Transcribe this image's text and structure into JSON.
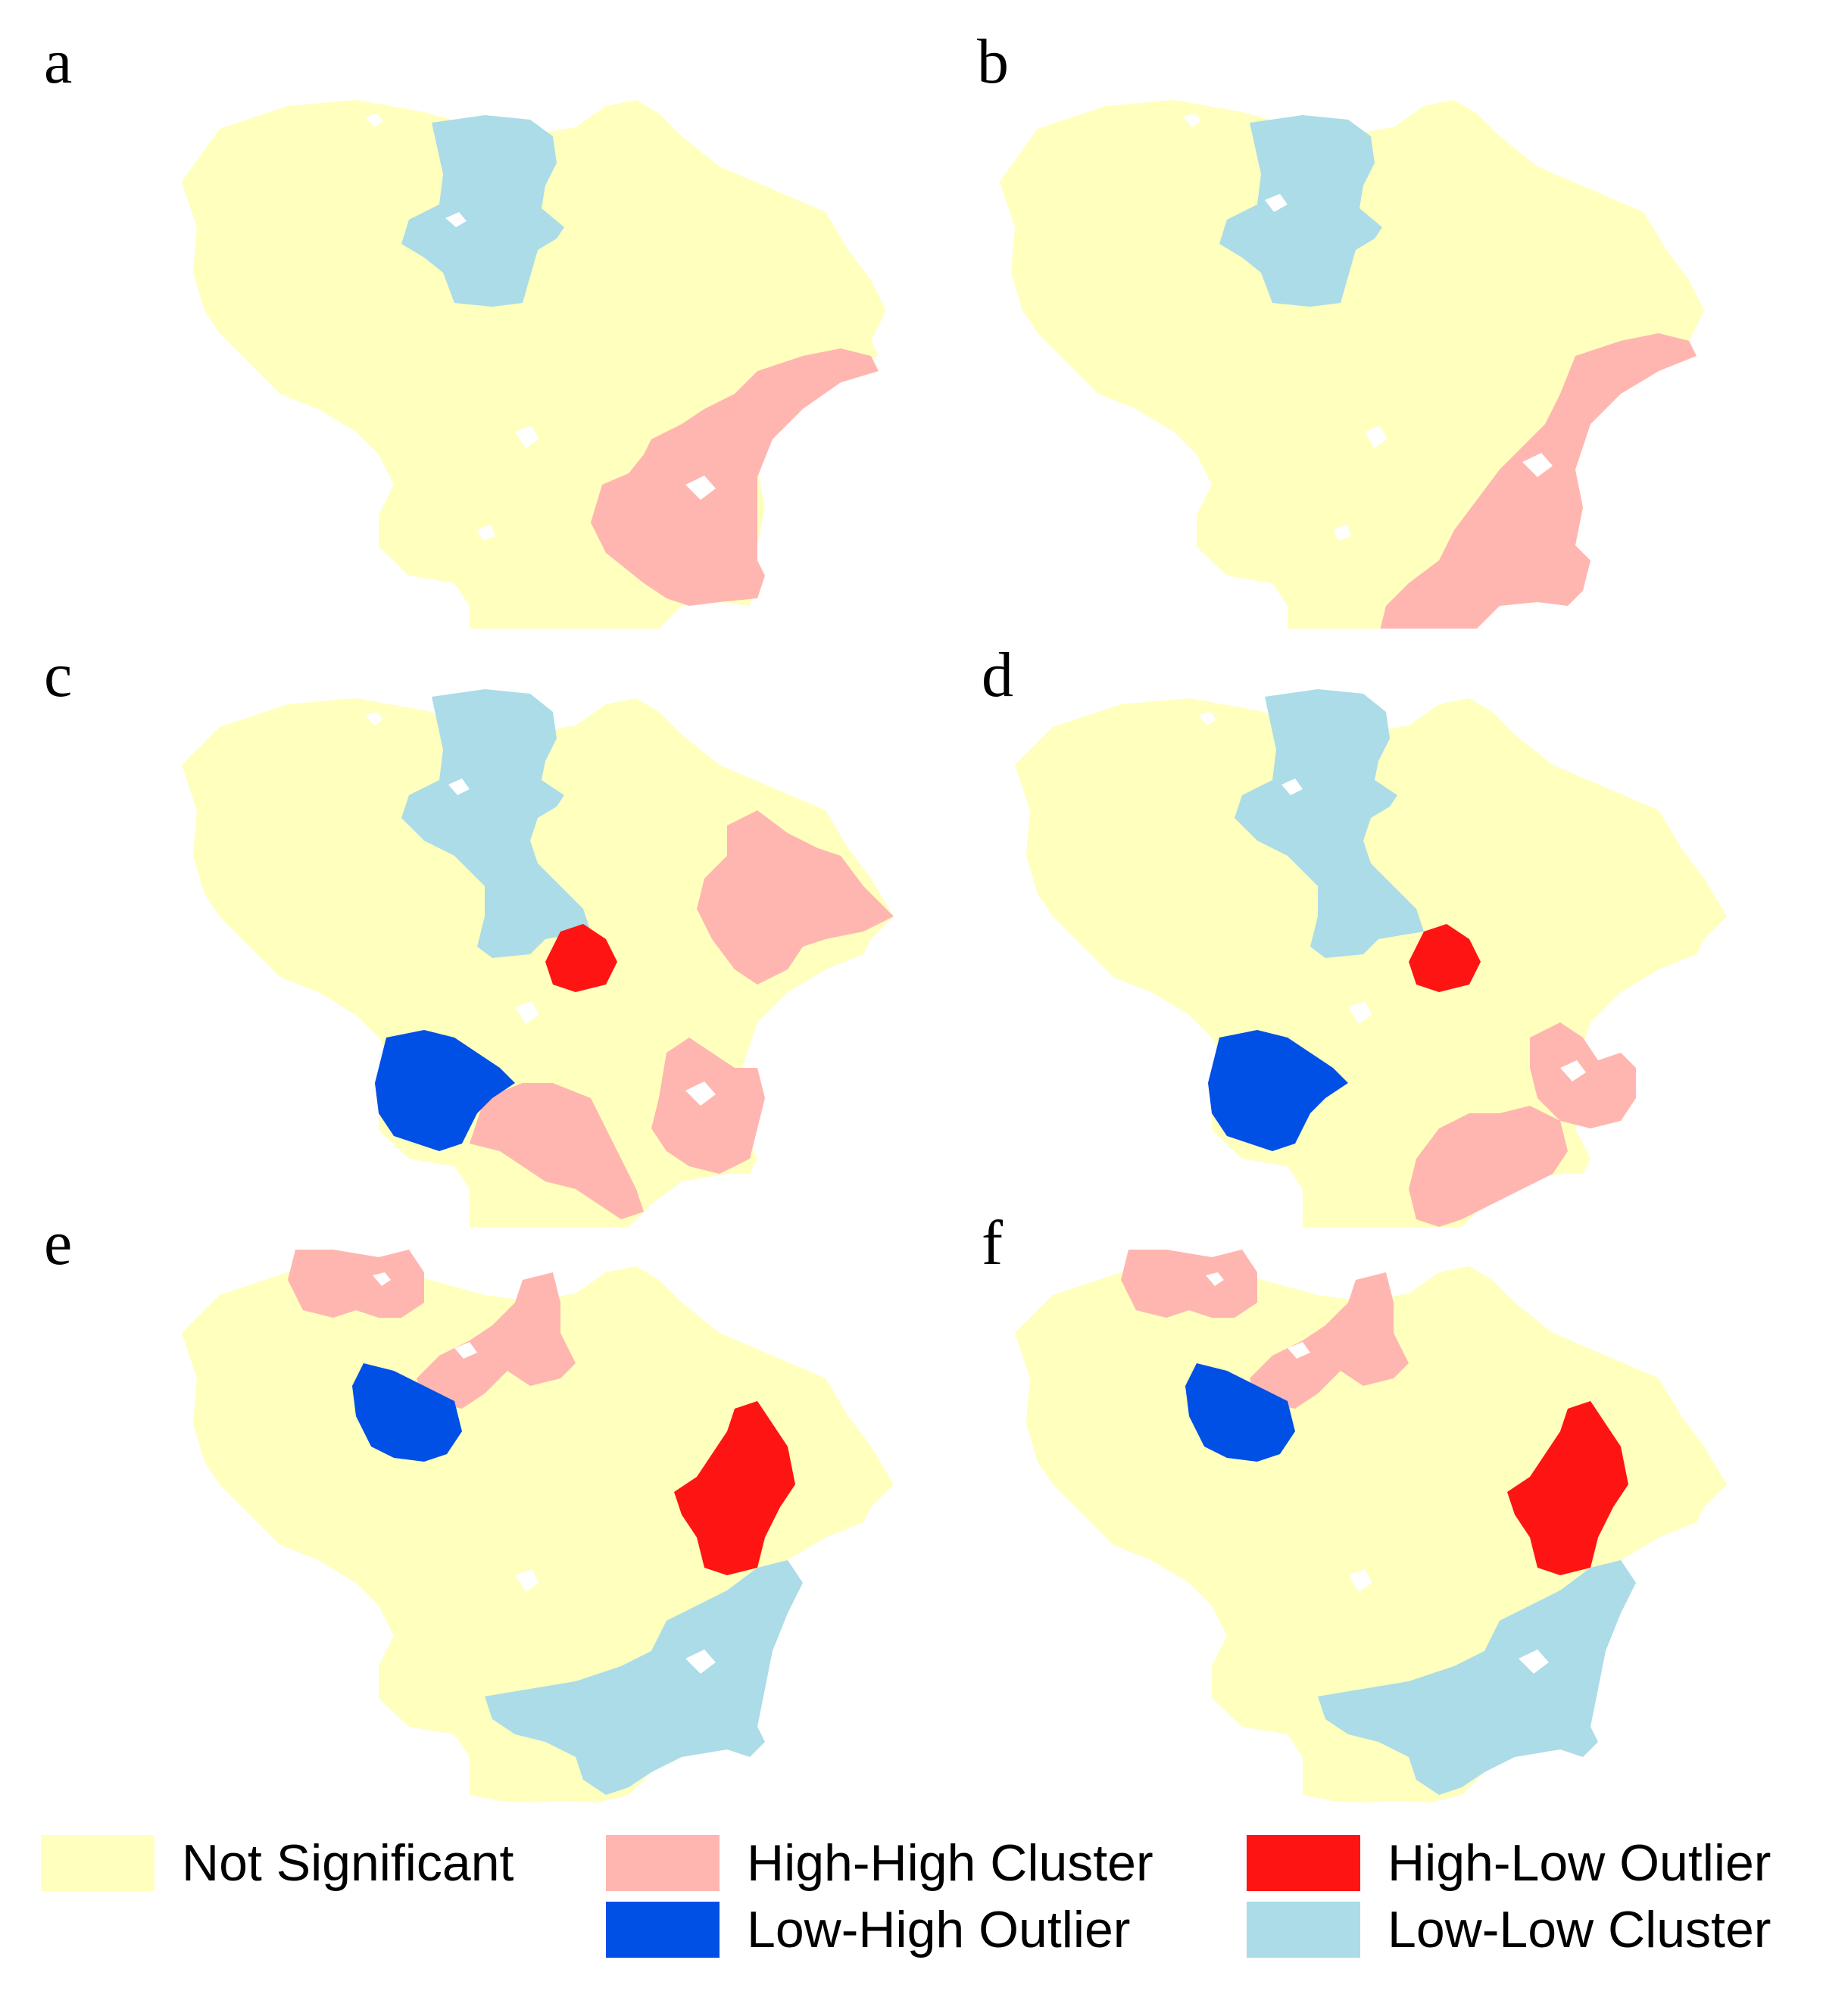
{
  "colors": {
    "not_significant": "#FFFFBE",
    "high_high": "#FFB6B0",
    "high_low": "#FF1414",
    "low_high": "#0050E6",
    "low_low": "#ABDCE8",
    "hole": "#FFFFFF"
  },
  "panels": [
    {
      "label": "a",
      "regions": [
        "low_low",
        "high_high"
      ]
    },
    {
      "label": "b",
      "regions": [
        "low_low",
        "high_high"
      ]
    },
    {
      "label": "c",
      "regions": [
        "low_low",
        "high_high",
        "high_low",
        "low_high"
      ]
    },
    {
      "label": "d",
      "regions": [
        "low_low",
        "high_high",
        "high_low",
        "low_high"
      ]
    },
    {
      "label": "e",
      "regions": [
        "high_high",
        "low_high",
        "high_low",
        "low_low"
      ]
    },
    {
      "label": "f",
      "regions": [
        "high_high",
        "low_high",
        "high_low",
        "low_low"
      ]
    }
  ],
  "legend": [
    {
      "key": "not_significant",
      "label": "Not Significant"
    },
    {
      "key": "high_high",
      "label": "High-High Cluster"
    },
    {
      "key": "high_low",
      "label": "High-Low Outlier"
    },
    {
      "key": "low_high",
      "label": "Low-High Outlier"
    },
    {
      "key": "low_low",
      "label": "Low-Low Cluster"
    }
  ]
}
